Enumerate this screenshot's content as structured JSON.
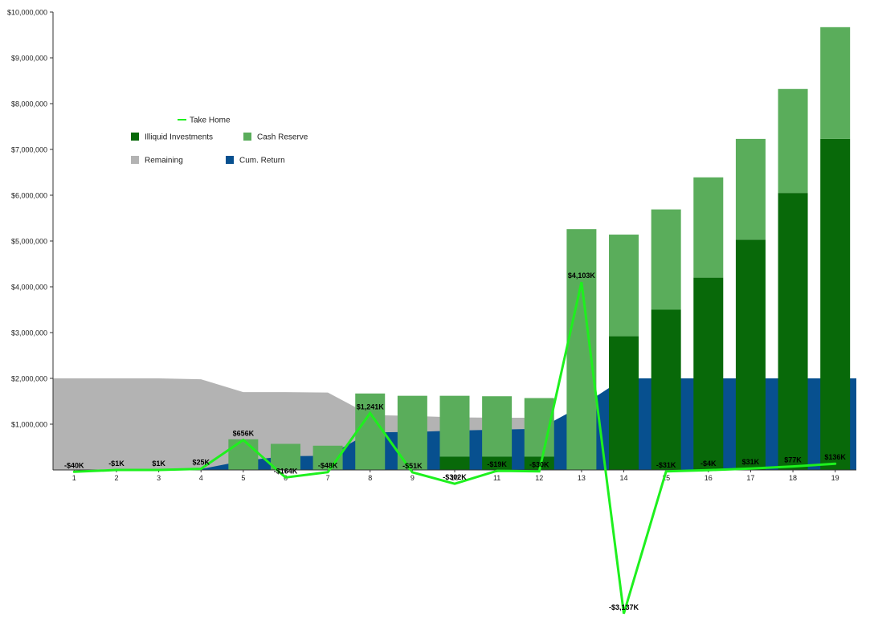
{
  "chart_data": {
    "type": "bar",
    "title": "",
    "xlabel": "",
    "ylabel": "",
    "categories": [
      "1",
      "2",
      "3",
      "4",
      "5",
      "6",
      "7",
      "8",
      "9",
      "10",
      "11",
      "12",
      "13",
      "14",
      "15",
      "16",
      "17",
      "18",
      "19"
    ],
    "ylim": [
      0,
      10000000
    ],
    "y_ticks": [
      {
        "value": 1000000,
        "label": "$1,000,000"
      },
      {
        "value": 2000000,
        "label": "$2,000,000"
      },
      {
        "value": 3000000,
        "label": "$3,000,000"
      },
      {
        "value": 4000000,
        "label": "$4,000,000"
      },
      {
        "value": 5000000,
        "label": "$5,000,000"
      },
      {
        "value": 6000000,
        "label": "$6,000,000"
      },
      {
        "value": 7000000,
        "label": "$7,000,000"
      },
      {
        "value": 8000000,
        "label": "$8,000,000"
      },
      {
        "value": 9000000,
        "label": "$9,000,000"
      },
      {
        "value": 10000000,
        "label": "$10,000,000"
      }
    ],
    "grid": false,
    "legend_position": "upper-left",
    "series": [
      {
        "name": "Remaining",
        "kind": "area",
        "color": "#b3b3b3",
        "values": [
          2000000,
          2000000,
          2000000,
          1980000,
          1700000,
          1700000,
          1690000,
          1200000,
          1180000,
          1150000,
          1140000,
          1140000,
          0,
          0,
          0,
          0,
          0,
          0,
          0
        ]
      },
      {
        "name": "Cum. Return",
        "kind": "area",
        "color": "#07508f",
        "values": [
          0,
          0,
          0,
          20000,
          200000,
          300000,
          310000,
          820000,
          830000,
          860000,
          880000,
          900000,
          1400000,
          2000000,
          2000000,
          2000000,
          2000000,
          2000000,
          2000000
        ]
      },
      {
        "name": "Illiquid Investments",
        "kind": "bar",
        "stack": "main",
        "color": "#086909",
        "values": [
          0,
          0,
          0,
          0,
          0,
          0,
          0,
          0,
          0,
          290000,
          290000,
          290000,
          0,
          2920000,
          3500000,
          4200000,
          5030000,
          6050000,
          7230000
        ]
      },
      {
        "name": "Cash Reserve",
        "kind": "bar",
        "stack": "main",
        "color": "#5aad5b",
        "values": [
          0,
          0,
          0,
          0,
          670000,
          570000,
          530000,
          1670000,
          1620000,
          1330000,
          1320000,
          1280000,
          5260000,
          2220000,
          2190000,
          2190000,
          2200000,
          2270000,
          2440000
        ]
      },
      {
        "name": "Take Home",
        "kind": "line",
        "color": "#1ef01e",
        "values": [
          -40000,
          -1000,
          1000,
          25000,
          656000,
          -164000,
          -48000,
          1241000,
          -51000,
          -302000,
          -19000,
          -30000,
          4103000,
          -3137000,
          -31000,
          -4000,
          31000,
          77000,
          136000
        ],
        "labels": [
          "-$40K",
          "-$1K",
          "$1K",
          "$25K",
          "$656K",
          "-$164K",
          "-$48K",
          "$1,241K",
          "-$51K",
          "-$302K",
          "-$19K",
          "-$30K",
          "$4,103K",
          "-$3,137K",
          "-$31K",
          "-$4K",
          "$31K",
          "$77K",
          "$136K"
        ]
      }
    ],
    "legend": [
      {
        "name": "Take Home",
        "marker": "line",
        "color": "#1ef01e"
      },
      {
        "name": "Illiquid Investments",
        "marker": "square",
        "color": "#086909"
      },
      {
        "name": "Cash Reserve",
        "marker": "square",
        "color": "#5aad5b"
      },
      {
        "name": "Remaining",
        "marker": "square",
        "color": "#b3b3b3"
      },
      {
        "name": "Cum. Return",
        "marker": "square",
        "color": "#07508f"
      }
    ],
    "colors": {
      "axis": "#333333",
      "text": "#222222",
      "label": "#000000"
    }
  }
}
